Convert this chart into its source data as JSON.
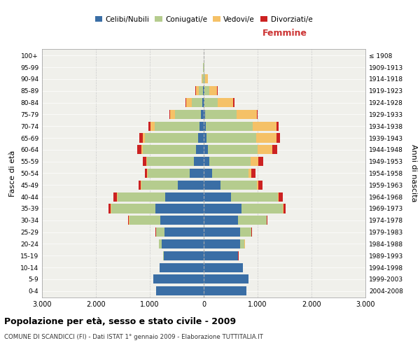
{
  "age_groups": [
    "0-4",
    "5-9",
    "10-14",
    "15-19",
    "20-24",
    "25-29",
    "30-34",
    "35-39",
    "40-44",
    "45-49",
    "50-54",
    "55-59",
    "60-64",
    "65-69",
    "70-74",
    "75-79",
    "80-84",
    "85-89",
    "90-94",
    "95-99",
    "100+"
  ],
  "birth_years": [
    "2004-2008",
    "1999-2003",
    "1994-1998",
    "1989-1993",
    "1984-1988",
    "1979-1983",
    "1974-1978",
    "1969-1973",
    "1964-1968",
    "1959-1963",
    "1954-1958",
    "1949-1953",
    "1944-1948",
    "1939-1943",
    "1934-1938",
    "1929-1933",
    "1924-1928",
    "1919-1923",
    "1914-1918",
    "1909-1913",
    "≤ 1908"
  ],
  "colors": {
    "celibe": "#3a6ea5",
    "coniugato": "#b5cc8e",
    "vedovo": "#f5c167",
    "divorziato": "#cc2222"
  },
  "males": {
    "celibe": [
      880,
      940,
      820,
      740,
      780,
      730,
      800,
      900,
      720,
      480,
      260,
      180,
      140,
      110,
      80,
      50,
      25,
      15,
      5,
      2,
      0
    ],
    "coniugato": [
      0,
      0,
      2,
      8,
      45,
      150,
      580,
      820,
      880,
      680,
      780,
      870,
      990,
      980,
      830,
      480,
      190,
      75,
      20,
      5,
      0
    ],
    "vedovo": [
      0,
      0,
      0,
      0,
      5,
      5,
      5,
      5,
      5,
      5,
      8,
      18,
      25,
      45,
      75,
      95,
      110,
      55,
      20,
      5,
      0
    ],
    "divorziato": [
      0,
      0,
      0,
      5,
      5,
      8,
      18,
      45,
      65,
      48,
      38,
      65,
      75,
      55,
      45,
      12,
      10,
      5,
      0,
      0,
      0
    ]
  },
  "females": {
    "nubile": [
      790,
      830,
      730,
      630,
      680,
      680,
      640,
      700,
      510,
      310,
      155,
      105,
      75,
      55,
      45,
      25,
      12,
      10,
      5,
      2,
      0
    ],
    "coniugata": [
      0,
      0,
      2,
      12,
      75,
      200,
      530,
      770,
      870,
      680,
      670,
      770,
      920,
      920,
      870,
      580,
      245,
      95,
      25,
      5,
      0
    ],
    "vedova": [
      0,
      0,
      0,
      0,
      5,
      5,
      5,
      8,
      12,
      28,
      55,
      140,
      280,
      380,
      430,
      380,
      290,
      145,
      50,
      10,
      2
    ],
    "divorziata": [
      0,
      0,
      0,
      5,
      5,
      8,
      12,
      45,
      75,
      75,
      75,
      95,
      95,
      65,
      45,
      18,
      18,
      10,
      2,
      0,
      0
    ]
  },
  "xlim": 3000,
  "xlabel_right": "Femmine",
  "ylabel_left": "Fasce di età",
  "ylabel_right": "Anni di nascita",
  "title": "Popolazione per età, sesso e stato civile - 2009",
  "subtitle": "COMUNE DI SCANDICCI (FI) - Dati ISTAT 1° gennaio 2009 - Elaborazione TUTTITALIA.IT",
  "legend_labels": [
    "Celibi/Nubili",
    "Coniugati/e",
    "Vedovi/e",
    "Divorziati/e"
  ],
  "bg_color": "#f0f0eb",
  "grid_color": "#cccccc"
}
